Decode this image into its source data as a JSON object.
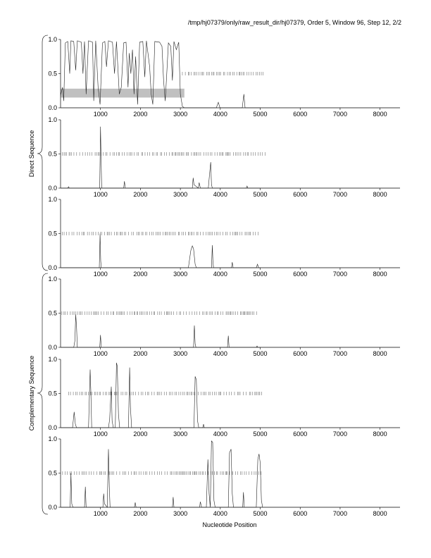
{
  "header": {
    "title": "/tmp/hj07379/only/raw_result_dir/hj07379, Order 5, Window 96, Step 12, 2/2"
  },
  "groups": {
    "direct_label": "Direct Sequence",
    "complementary_label": "Complementary Sequence"
  },
  "chart_data": {
    "type": "line",
    "xlabel": "Nucleotide Position",
    "xlim": [
      0,
      8500
    ],
    "ylim": [
      0,
      1
    ],
    "x_ticks": [
      1000,
      2000,
      3000,
      4000,
      5000,
      6000,
      7000,
      8000
    ],
    "y_ticks": [
      "0.0",
      "0.5",
      "1.0"
    ],
    "grid": false,
    "sequence_length": 3100,
    "panels": [
      {
        "frame": 1,
        "strand": "direct",
        "highlight": {
          "x_start": 0,
          "x_end": 3100,
          "y_low": 0.15,
          "y_high": 0.28
        },
        "tick_rows": [
          {
            "y": 0.5,
            "x_from": 3050,
            "x_to": 5100
          }
        ],
        "curve": [
          [
            0,
            0.18
          ],
          [
            50,
            0.3
          ],
          [
            80,
            0.1
          ],
          [
            120,
            0.95
          ],
          [
            180,
            0.97
          ],
          [
            230,
            0.5
          ],
          [
            260,
            0.98
          ],
          [
            330,
            0.97
          ],
          [
            380,
            0.55
          ],
          [
            420,
            0.98
          ],
          [
            520,
            0.96
          ],
          [
            560,
            0.5
          ],
          [
            600,
            0.97
          ],
          [
            640,
            0.2
          ],
          [
            700,
            0.98
          ],
          [
            800,
            0.96
          ],
          [
            830,
            0.1
          ],
          [
            880,
            0.98
          ],
          [
            940,
            0.3
          ],
          [
            990,
            0.05
          ],
          [
            1050,
            0.95
          ],
          [
            1110,
            0.97
          ],
          [
            1150,
            0.6
          ],
          [
            1200,
            0.98
          ],
          [
            1300,
            0.96
          ],
          [
            1350,
            0.5
          ],
          [
            1400,
            0.97
          ],
          [
            1470,
            0.2
          ],
          [
            1520,
            0.3
          ],
          [
            1580,
            0.95
          ],
          [
            1640,
            0.96
          ],
          [
            1690,
            0.3
          ],
          [
            1720,
            0.8
          ],
          [
            1760,
            0.5
          ],
          [
            1800,
            0.85
          ],
          [
            1840,
            0.2
          ],
          [
            1880,
            0.75
          ],
          [
            1930,
            0.05
          ],
          [
            1980,
            0.96
          ],
          [
            2060,
            0.97
          ],
          [
            2110,
            0.45
          ],
          [
            2150,
            0.98
          ],
          [
            2230,
            0.6
          ],
          [
            2270,
            0.2
          ],
          [
            2310,
            0.05
          ],
          [
            2360,
            0.97
          ],
          [
            2480,
            0.96
          ],
          [
            2540,
            0.9
          ],
          [
            2580,
            0.4
          ],
          [
            2620,
            0.1
          ],
          [
            2660,
            0.5
          ],
          [
            2700,
            0.95
          ],
          [
            2760,
            0.9
          ],
          [
            2800,
            0.4
          ],
          [
            2840,
            0.97
          ],
          [
            2900,
            0.85
          ],
          [
            2960,
            0.96
          ],
          [
            3000,
            0.2
          ],
          [
            3050,
            0.02
          ],
          [
            3100,
            0.0
          ],
          [
            3900,
            0.0
          ],
          [
            3950,
            0.08
          ],
          [
            3990,
            0.0
          ],
          [
            4550,
            0.0
          ],
          [
            4590,
            0.2
          ],
          [
            4620,
            0.0
          ],
          [
            5000,
            0.0
          ]
        ]
      },
      {
        "frame": 2,
        "strand": "direct",
        "tick_rows": [
          {
            "y": 0.5,
            "x_from": 0,
            "x_to": 5150
          }
        ],
        "curve": [
          [
            0,
            0.0
          ],
          [
            180,
            0.0
          ],
          [
            200,
            0.02
          ],
          [
            220,
            0.0
          ],
          [
            980,
            0.0
          ],
          [
            1000,
            0.9
          ],
          [
            1015,
            0.4
          ],
          [
            1030,
            0.0
          ],
          [
            1580,
            0.0
          ],
          [
            1600,
            0.1
          ],
          [
            1620,
            0.0
          ],
          [
            3300,
            0.0
          ],
          [
            3320,
            0.15
          ],
          [
            3340,
            0.05
          ],
          [
            3450,
            0.0
          ],
          [
            3470,
            0.08
          ],
          [
            3500,
            0.0
          ],
          [
            3700,
            0.0
          ],
          [
            3730,
            0.2
          ],
          [
            3760,
            0.38
          ],
          [
            3780,
            0.05
          ],
          [
            3800,
            0.0
          ],
          [
            4650,
            0.0
          ],
          [
            4670,
            0.03
          ],
          [
            4690,
            0.0
          ],
          [
            5000,
            0.0
          ]
        ]
      },
      {
        "frame": 3,
        "strand": "direct",
        "tick_rows": [
          {
            "y": 0.5,
            "x_from": 0,
            "x_to": 5000
          }
        ],
        "curve": [
          [
            0,
            0.0
          ],
          [
            970,
            0.0
          ],
          [
            990,
            0.5
          ],
          [
            1005,
            0.1
          ],
          [
            1020,
            0.0
          ],
          [
            3200,
            0.0
          ],
          [
            3260,
            0.25
          ],
          [
            3300,
            0.32
          ],
          [
            3330,
            0.28
          ],
          [
            3370,
            0.05
          ],
          [
            3400,
            0.0
          ],
          [
            3780,
            0.0
          ],
          [
            3800,
            0.33
          ],
          [
            3815,
            0.1
          ],
          [
            3830,
            0.0
          ],
          [
            4280,
            0.0
          ],
          [
            4300,
            0.08
          ],
          [
            4320,
            0.0
          ],
          [
            4900,
            0.0
          ],
          [
            4930,
            0.05
          ],
          [
            4960,
            0.0
          ],
          [
            5000,
            0.0
          ]
        ]
      },
      {
        "frame": 1,
        "strand": "complementary",
        "tick_rows": [
          {
            "y": 0.5,
            "x_from": 0,
            "x_to": 4950
          }
        ],
        "curve": [
          [
            0,
            0.0
          ],
          [
            330,
            0.0
          ],
          [
            360,
            0.1
          ],
          [
            380,
            0.48
          ],
          [
            400,
            0.3
          ],
          [
            420,
            0.0
          ],
          [
            980,
            0.0
          ],
          [
            1000,
            0.18
          ],
          [
            1020,
            0.0
          ],
          [
            3330,
            0.0
          ],
          [
            3350,
            0.32
          ],
          [
            3370,
            0.05
          ],
          [
            3390,
            0.0
          ],
          [
            4180,
            0.0
          ],
          [
            4200,
            0.17
          ],
          [
            4220,
            0.0
          ],
          [
            4900,
            0.0
          ],
          [
            4920,
            0.02
          ],
          [
            4940,
            0.0
          ],
          [
            5000,
            0.0
          ]
        ]
      },
      {
        "frame": 2,
        "strand": "complementary",
        "tick_rows": [
          {
            "y": 0.5,
            "x_from": 200,
            "x_to": 5100
          }
        ],
        "curve": [
          [
            0,
            0.0
          ],
          [
            300,
            0.0
          ],
          [
            340,
            0.23
          ],
          [
            370,
            0.05
          ],
          [
            400,
            0.0
          ],
          [
            700,
            0.0
          ],
          [
            740,
            0.85
          ],
          [
            760,
            0.5
          ],
          [
            780,
            0.0
          ],
          [
            1200,
            0.0
          ],
          [
            1230,
            0.12
          ],
          [
            1270,
            0.6
          ],
          [
            1290,
            0.1
          ],
          [
            1320,
            0.0
          ],
          [
            1370,
            0.0
          ],
          [
            1400,
            0.95
          ],
          [
            1420,
            0.9
          ],
          [
            1450,
            0.2
          ],
          [
            1480,
            0.0
          ],
          [
            1700,
            0.0
          ],
          [
            1730,
            0.88
          ],
          [
            1750,
            0.3
          ],
          [
            1780,
            0.0
          ],
          [
            3340,
            0.0
          ],
          [
            3370,
            0.75
          ],
          [
            3400,
            0.7
          ],
          [
            3430,
            0.1
          ],
          [
            3460,
            0.0
          ],
          [
            3560,
            0.0
          ],
          [
            3580,
            0.05
          ],
          [
            3600,
            0.0
          ],
          [
            5000,
            0.0
          ]
        ]
      },
      {
        "frame": 3,
        "strand": "complementary",
        "tick_rows": [
          {
            "y": 0.5,
            "x_from": 0,
            "x_to": 5050
          }
        ],
        "curve": [
          [
            0,
            0.0
          ],
          [
            240,
            0.0
          ],
          [
            260,
            0.5
          ],
          [
            280,
            0.05
          ],
          [
            310,
            0.0
          ],
          [
            600,
            0.0
          ],
          [
            620,
            0.3
          ],
          [
            640,
            0.0
          ],
          [
            1060,
            0.0
          ],
          [
            1080,
            0.2
          ],
          [
            1100,
            0.05
          ],
          [
            1170,
            0.0
          ],
          [
            1200,
            0.85
          ],
          [
            1220,
            0.3
          ],
          [
            1240,
            0.0
          ],
          [
            1850,
            0.0
          ],
          [
            1870,
            0.07
          ],
          [
            1890,
            0.0
          ],
          [
            2800,
            0.0
          ],
          [
            2820,
            0.15
          ],
          [
            2840,
            0.0
          ],
          [
            3480,
            0.0
          ],
          [
            3500,
            0.08
          ],
          [
            3530,
            0.0
          ],
          [
            3650,
            0.0
          ],
          [
            3690,
            0.7
          ],
          [
            3720,
            0.2
          ],
          [
            3750,
            0.0
          ],
          [
            3780,
            0.97
          ],
          [
            3810,
            0.95
          ],
          [
            3840,
            0.1
          ],
          [
            3870,
            0.0
          ],
          [
            4200,
            0.0
          ],
          [
            4230,
            0.8
          ],
          [
            4270,
            0.85
          ],
          [
            4300,
            0.2
          ],
          [
            4330,
            0.0
          ],
          [
            4560,
            0.0
          ],
          [
            4580,
            0.22
          ],
          [
            4600,
            0.0
          ],
          [
            4900,
            0.0
          ],
          [
            4940,
            0.7
          ],
          [
            4970,
            0.78
          ],
          [
            5000,
            0.65
          ],
          [
            5030,
            0.1
          ],
          [
            5060,
            0.0
          ]
        ]
      }
    ]
  }
}
